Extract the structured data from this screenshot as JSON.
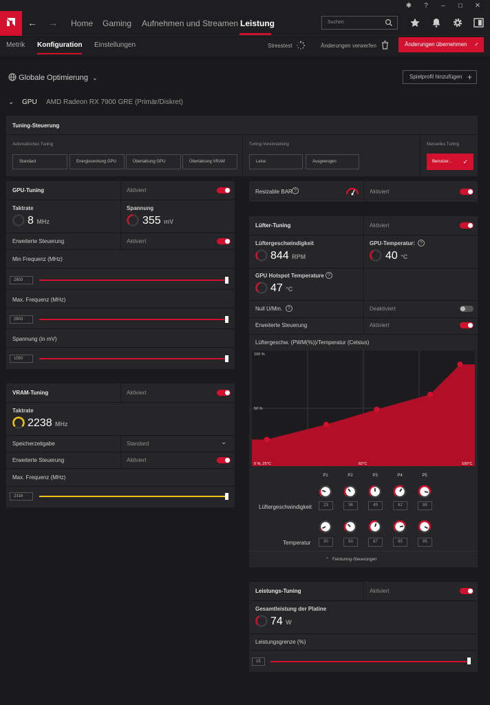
{
  "nav": {
    "home": "Home",
    "gaming": "Gaming",
    "record": "Aufnehmen und Streamen",
    "performance": "Leistung",
    "search_placeholder": "Suchen"
  },
  "subnav": {
    "metrics": "Metrik",
    "config": "Konfiguration",
    "settings": "Einstellungen",
    "stress": "Stresstest",
    "discard": "Änderungen verwerfen",
    "apply": "Änderungen übernehmen"
  },
  "global": {
    "label": "Globale Optimierung",
    "add_profile": "Spielprofil hinzufügen"
  },
  "gpu": {
    "label": "GPU",
    "name": "AMD Radeon RX 7900 GRE (Primär/Diskret)"
  },
  "tuning": {
    "title": "Tuning-Steuerung",
    "auto_label": "Automatisches Tuning",
    "auto_buttons": [
      "Standard",
      "Energiesenkung GPU",
      "Übertaktung GPU",
      "Übertaktung VRAM"
    ],
    "preset_label": "Tuning-Voreinstellung",
    "preset_buttons": [
      "Leise",
      "Ausgewogen"
    ],
    "manual_label": "Manuelles Tuning",
    "manual_button": "Benutzer..."
  },
  "gpu_tuning": {
    "title": "GPU-Tuning",
    "status": "Aktiviert",
    "clock_label": "Taktrate",
    "clock_value": "8",
    "clock_unit": "MHz",
    "voltage_label": "Spannung",
    "voltage_value": "355",
    "voltage_unit": "mV",
    "adv_label": "Erweiterte Steuerung",
    "adv_status": "Aktiviert",
    "min_freq_label": "Min Frequenz (MHz)",
    "min_freq_value": "2803",
    "max_freq_label": "Max. Frequenz (MHz)",
    "max_freq_value": "2803",
    "volt_label": "Spannung (in mV)",
    "volt_value": "1050"
  },
  "vram_tuning": {
    "title": "VRAM-Tuning",
    "status": "Aktiviert",
    "clock_label": "Taktrate",
    "clock_value": "2238",
    "clock_unit": "MHz",
    "timing_label": "Speicherzeitgabe",
    "timing_value": "Standard",
    "adv_label": "Erweiterte Steuerung",
    "adv_status": "Aktiviert",
    "max_freq_label": "Max. Frequenz (MHz)",
    "max_freq_value": "2316"
  },
  "rebar": {
    "label": "Resizable BAR",
    "status": "Aktiviert"
  },
  "fan": {
    "title": "Lüfter-Tuning",
    "status": "Aktiviert",
    "speed_label": "Lüftergeschwindigkeit",
    "speed_value": "844",
    "speed_unit": "RPM",
    "gpu_temp_label": "GPU-Temperatur:",
    "gpu_temp_value": "40",
    "gpu_temp_unit": "°C",
    "hotspot_label": "GPU Hotspot Temperature",
    "hotspot_value": "47",
    "hotspot_unit": "°C",
    "zero_label": "Null U/Min.",
    "zero_status": "Deaktiviert",
    "adv_label": "Erweiterte Steuerung",
    "adv_status": "Aktiviert",
    "curve_title": "Lüftergeschw. (PWM(%))/Temperatur (Celsius)",
    "y_top": "100 %",
    "y_mid": "50 %",
    "x_left": "0 %, 25°C",
    "x_mid": "62°C",
    "x_right": "100°C",
    "points": [
      "P1",
      "P2",
      "P3",
      "P4",
      "P5"
    ],
    "speed_row_label": "Lüftergeschwindigkeit",
    "speeds": [
      "23",
      "36",
      "49",
      "62",
      "88"
    ],
    "temp_row_label": "Temperatur",
    "temps": [
      "30",
      "50",
      "67",
      "85",
      "95"
    ],
    "fine_tuning": "Feintuning-Steuerungen"
  },
  "power": {
    "title": "Leistungs-Tuning",
    "status": "Aktiviert",
    "board_label": "Gesamtleistung der Platine",
    "board_value": "74",
    "board_unit": "W",
    "limit_label": "Leistungsgrenze (%)",
    "limit_value": "15"
  },
  "colors": {
    "accent": "#d1112e",
    "vram": "#f0c419"
  },
  "chart_data": {
    "type": "area",
    "x": [
      30,
      50,
      67,
      85,
      95
    ],
    "y": [
      23,
      36,
      49,
      62,
      88
    ],
    "xlabel": "",
    "ylabel": "",
    "xlim": [
      25,
      100
    ],
    "ylim": [
      0,
      100
    ]
  }
}
